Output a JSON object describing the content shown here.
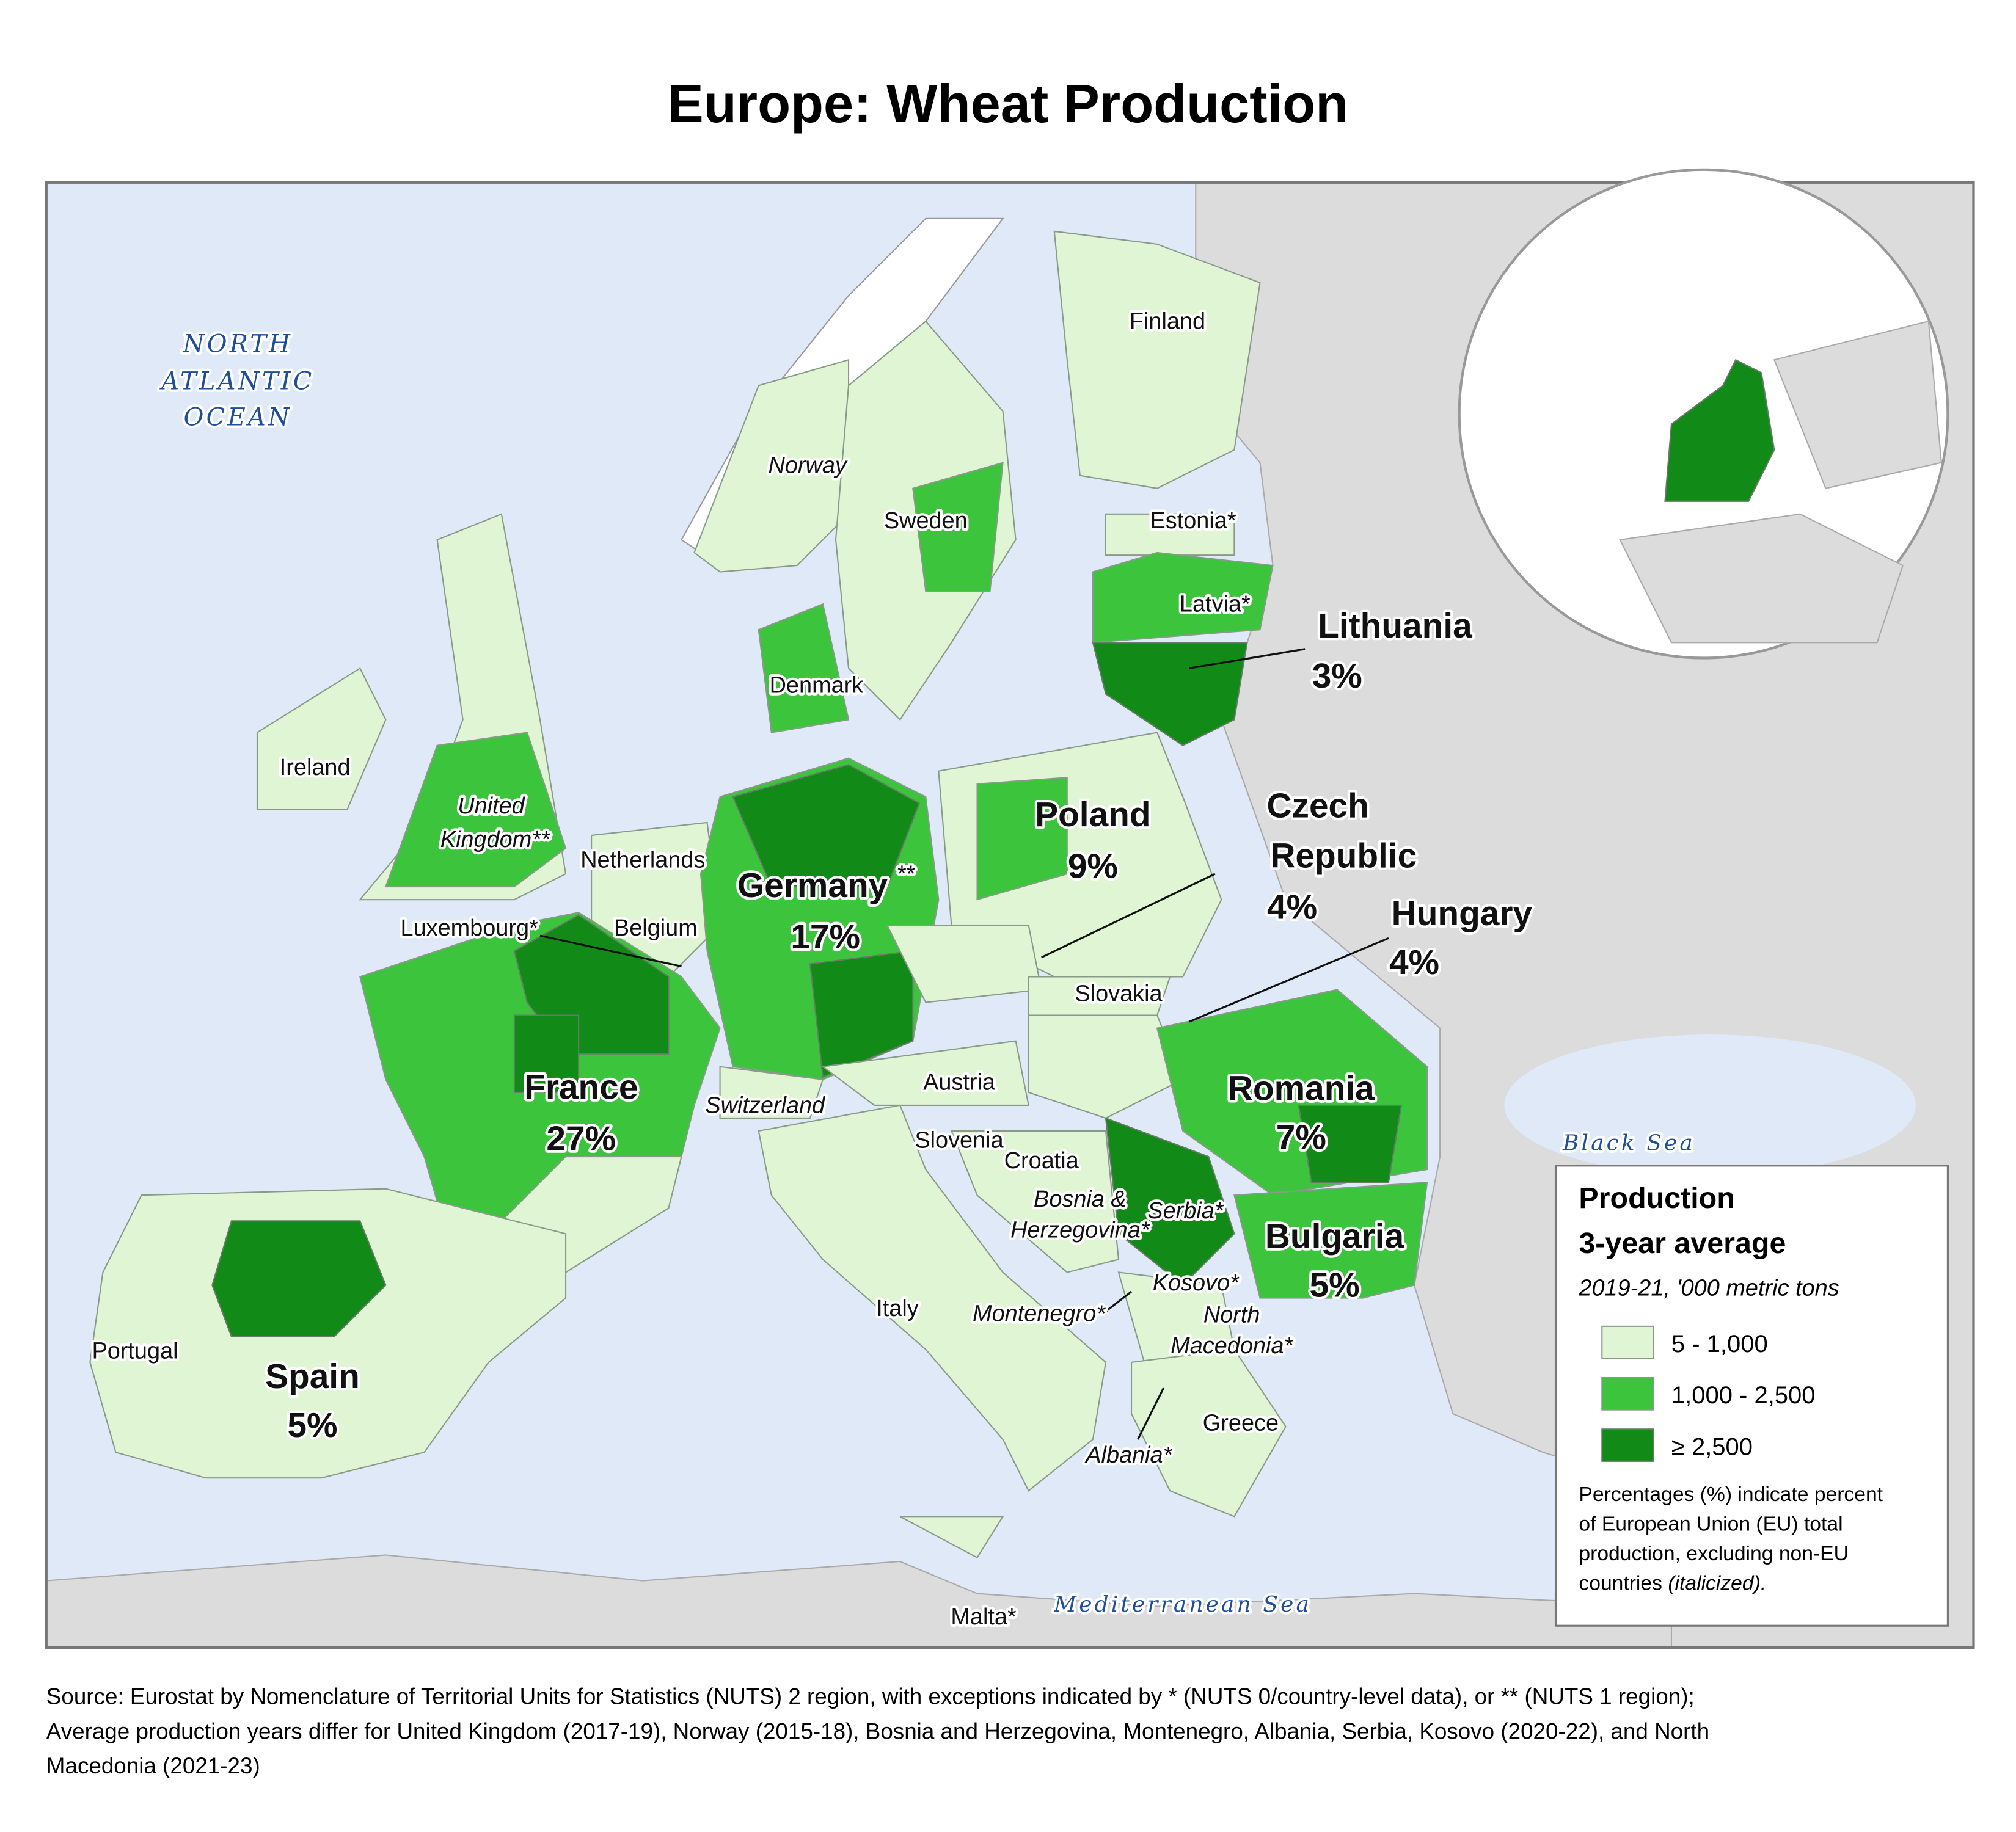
{
  "title": "Europe: Wheat Production",
  "water_labels": [
    "NORTH",
    "ATLANTIC",
    "OCEAN",
    "Black Sea",
    "Mediterranean Sea"
  ],
  "labels": [
    "Finland",
    "Norway",
    "Sweden",
    "Estonia*",
    "Latvia*",
    "Lithuania",
    "3%",
    "Denmark",
    "Ireland",
    "United",
    "Kingdom**",
    "Netherlands",
    "Poland",
    "9%",
    "Czech",
    "Republic",
    "4%",
    "Germany",
    "**",
    "17%",
    "Luxembourg*",
    "Belgium",
    "Hungary",
    "4%",
    "Slovakia",
    "Austria",
    "France",
    "27%",
    "Switzerland",
    "Romania",
    "7%",
    "Slovenia",
    "Croatia",
    "Bosnia &",
    "Herzegovina*",
    "Serbia*",
    "Bulgaria",
    "5%",
    "Kosovo*",
    "North",
    "Macedonia*",
    "Montenegro*",
    "Italy",
    "Portugal",
    "Spain",
    "5%",
    "Greece",
    "Albania*",
    "Malta*"
  ],
  "legend": {
    "title": [
      "Production",
      "3-year average"
    ],
    "subtitle": "2019-21, '000 metric tons",
    "items": [
      "5 - 1,000",
      "1,000 - 2,500",
      "≥ 2,500"
    ],
    "note": [
      "Percentages (%) indicate percent",
      "of European Union (EU) total",
      "production, excluding non-EU"
    ],
    "note_tail": "countries",
    "note_tail_italic": "(italicized)."
  },
  "source": [
    "Source: Eurostat by Nomenclature of Territorial Units for Statistics (NUTS) 2 region, with exceptions indicated by * (NUTS 0/country-level data), or ** (NUTS 1 region);",
    "Average production years differ for United Kingdom (2017-19), Norway (2015-18), Bosnia and Herzegovina, Montenegro, Albania, Serbia, Kosovo (2020-22), and North",
    "Macedonia (2021-23)"
  ]
}
